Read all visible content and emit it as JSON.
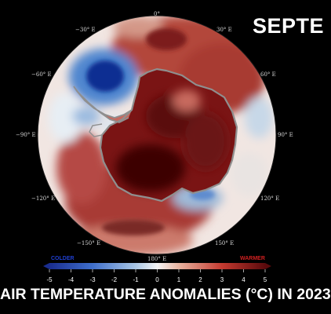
{
  "header": {
    "month_label": "SEPTE"
  },
  "map": {
    "projection": "south-polar-stereographic",
    "region": "Antarctica",
    "longitude_labels": {
      "lon_0": "0°",
      "lon_30e": "30° E",
      "lon_60e": "60° E",
      "lon_90e": "90° E",
      "lon_120e": "120° E",
      "lon_150e": "150° E",
      "lon_180e": "180° E",
      "lon_150w": "−150° E",
      "lon_120w": "−120° E",
      "lon_90w": "−90° E",
      "lon_60w": "−60° E",
      "lon_30w": "−30° E"
    },
    "colors": {
      "cold_deep": "#0d3fa8",
      "cold": "#4f86cf",
      "cold_light": "#a9c6e3",
      "neutral": "#f2f2f2",
      "warm_light": "#e6b09c",
      "warm": "#c2463b",
      "warm_deep": "#7a1414",
      "warm_darkest": "#3d0506",
      "coastline": "#8f8f8f"
    }
  },
  "colorbar": {
    "min_label": "COLDER",
    "max_label": "WARMER",
    "min_color": "#1f3fd1",
    "max_color": "#d22020",
    "ticks": [
      "-5",
      "-4",
      "-3",
      "-2",
      "-1",
      "0",
      "1",
      "2",
      "3",
      "4",
      "5"
    ]
  },
  "footer": {
    "title": "AIR TEMPERATURE ANOMALIES (°C) IN 2023"
  }
}
